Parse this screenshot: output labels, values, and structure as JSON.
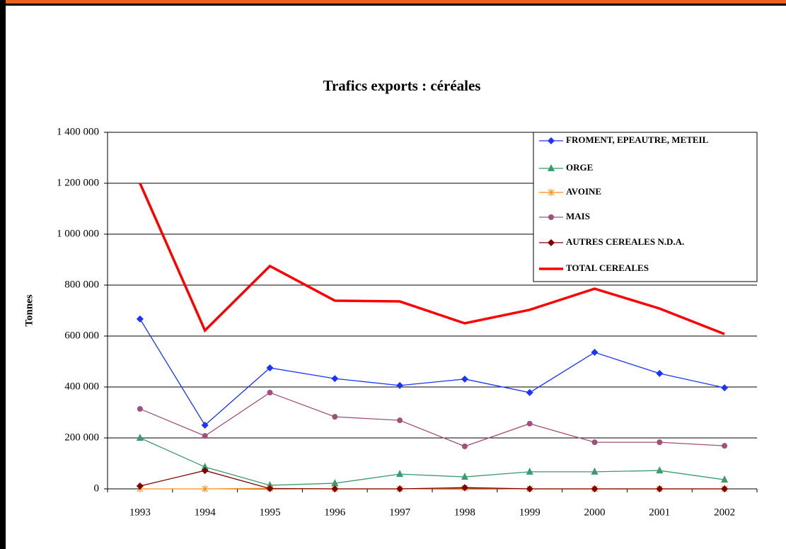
{
  "chart_data": {
    "type": "line",
    "title": "Trafics exports : céréales",
    "y_label": "Tonnes",
    "categories": [
      "1993",
      "1994",
      "1995",
      "1996",
      "1997",
      "1998",
      "1999",
      "2000",
      "2001",
      "2002"
    ],
    "series": [
      {
        "name": "FROMENT, EPEAUTRE, METEIL",
        "color": "#1a33ff",
        "marker": "diamond",
        "values": [
          667000,
          250000,
          475000,
          433000,
          406000,
          431000,
          378000,
          536000,
          453000,
          397000
        ]
      },
      {
        "name": "ORGE",
        "color": "#3a9b6e",
        "marker": "triangle",
        "values": [
          200000,
          86000,
          14000,
          22000,
          58000,
          47000,
          67000,
          67000,
          72000,
          36000
        ]
      },
      {
        "name": "AVOINE",
        "color": "#ff8c1a",
        "marker": "x",
        "values": [
          0,
          0,
          2000,
          0,
          0,
          3000,
          0,
          0,
          0,
          0
        ]
      },
      {
        "name": "MAIS",
        "color": "#a0507a",
        "marker": "circle",
        "values": [
          314000,
          208000,
          378000,
          283000,
          269000,
          167000,
          256000,
          183000,
          183000,
          169000
        ]
      },
      {
        "name": "AUTRES CEREALES N.D.A.",
        "color": "#800000",
        "marker": "diamond",
        "values": [
          11000,
          72000,
          1000,
          0,
          0,
          5000,
          0,
          0,
          0,
          0
        ]
      },
      {
        "name": "TOTAL CEREALES",
        "color": "#ff0000",
        "values": [
          1200000,
          622000,
          875000,
          739000,
          736000,
          650000,
          703000,
          786000,
          708000,
          608000
        ]
      }
    ],
    "ylim": [
      0,
      1400000
    ],
    "yticks": [
      0,
      {
        "value": 200000,
        "label": "200 000"
      },
      {
        "value": 400000,
        "label": "400 000"
      },
      {
        "value": 600000,
        "label": "600 000"
      },
      {
        "value": 800000,
        "label": "800 000"
      },
      {
        "value": 1000000,
        "label": "1 000 000"
      },
      {
        "value": 1200000,
        "label": "1 200 000"
      },
      {
        "value": 1400000,
        "label": "1 400 000"
      }
    ],
    "grid": true,
    "legend": "upper right"
  }
}
